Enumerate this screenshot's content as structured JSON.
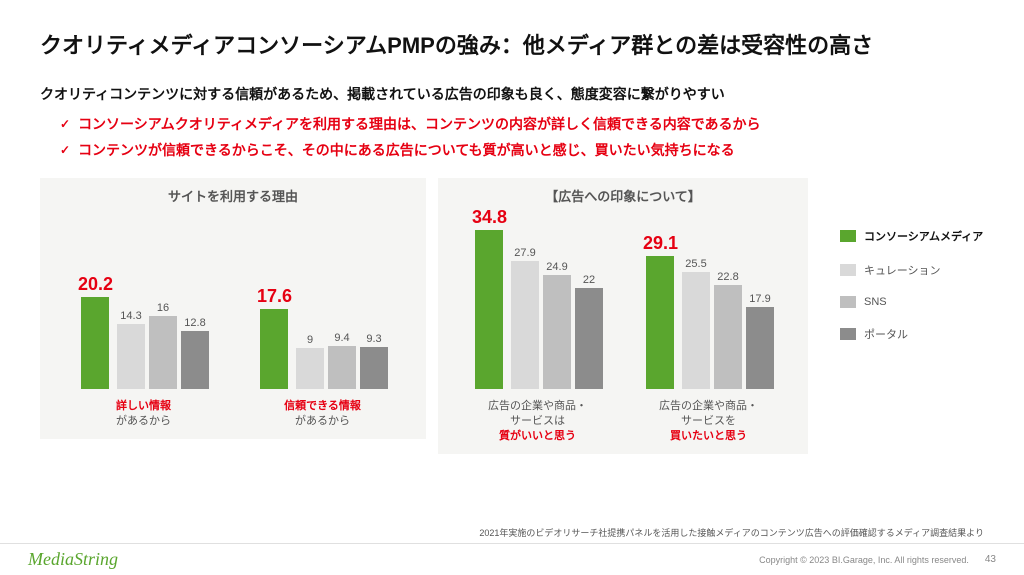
{
  "title": "クオリティメディアコンソーシアムPMPの強み：他メディア群との差は受容性の高さ",
  "subtitle": "クオリティコンテンツに対する信頼があるため、掲載されている広告の印象も良く、態度変容に繋がりやすい",
  "bullets": [
    "コンソーシアムクオリティメディアを利用する理由は、コンテンツの内容が詳しく信頼できる内容であるから",
    "コンテンツが信頼できるからこそ、その中にある広告についても質が高いと感じ、買いたい気持ちになる"
  ],
  "colors": {
    "primary_green": "#5aa62e",
    "highlight_red": "#e60012",
    "panel_bg": "#f5f5f3",
    "text_dark": "#111111",
    "text_mid": "#555555"
  },
  "series_colors": [
    "#5aa62e",
    "#d9d9d9",
    "#bfbfbf",
    "#8c8c8c"
  ],
  "legend": {
    "items": [
      "コンソーシアムメディア",
      "キュレーション",
      "SNS",
      "ポータル"
    ]
  },
  "chart_left": {
    "title": "サイトを利用する理由",
    "y_max": 35,
    "groups": [
      {
        "values": [
          20.2,
          14.3,
          16,
          12.8
        ],
        "highlight_index": 0,
        "caption_red": "詳しい情報",
        "caption_plain": "があるから"
      },
      {
        "values": [
          17.6,
          9,
          9.4,
          9.3
        ],
        "highlight_index": 0,
        "caption_red": "信頼できる情報",
        "caption_plain": "があるから"
      }
    ]
  },
  "chart_right": {
    "title": "【広告への印象について】",
    "y_max": 35,
    "groups": [
      {
        "values": [
          34.8,
          27.9,
          24.9,
          22
        ],
        "highlight_index": 0,
        "caption_plain_top": "広告の企業や商品・\nサービスは",
        "caption_red": "質がいいと思う"
      },
      {
        "values": [
          29.1,
          25.5,
          22.8,
          17.9
        ],
        "highlight_index": 0,
        "caption_plain_top": "広告の企業や商品・\nサービスを",
        "caption_red": "買いたいと思う"
      }
    ]
  },
  "footnote": "2021年実施のビデオリサーチ社提携パネルを活用した接触メディアのコンテンツ広告への評価確認するメディア調査結果より",
  "footer": {
    "logo": "MediaString",
    "copyright": "Copyright © 2023 BI.Garage, Inc. All rights reserved.",
    "page": "43"
  }
}
